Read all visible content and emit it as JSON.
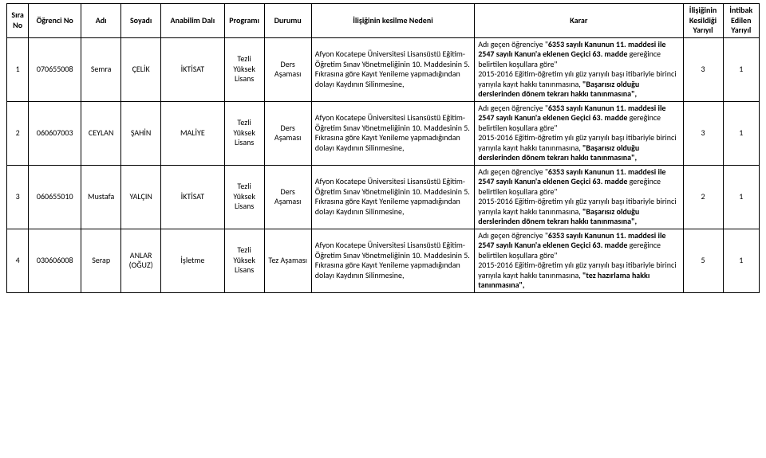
{
  "table": {
    "headers": {
      "sira": "Sıra No",
      "ogrenci": "Öğrenci No",
      "adi": "Adı",
      "soyadi": "Soyadı",
      "anabilim": "Anabilim Dalı",
      "program": "Programı",
      "durum": "Durumu",
      "neden": "İlişiğinin kesilme Nedeni",
      "karar": "Karar",
      "iliskigi": "İlişiğinin Kesildiği Yarıyıl",
      "intibak": "İntibak Edilen Yarıyıl"
    },
    "program_text": "Tezli Yüksek Lisans",
    "neden_text": "Afyon Kocatepe Üniversitesi Lisansüstü Eğitim-Öğretim Sınav Yönetmeliğinin 10. Maddesinin 5. Fıkrasına göre Kayıt Yenileme yapmadığından dolayı Kaydının Silinmesine,",
    "karar_prefix": "Adı geçen öğrenciye \"",
    "karar_bold1": "6353 sayılı Kanunun 11. maddesi ile 2547 sayılı Kanun'a eklenen Geçici 63. madde ",
    "karar_mid": "gereğince belirtilen koşullara göre\"",
    "karar_common": " 2015-2016 Eğitim-öğretim yılı güz yarıyılı başı itibariyle birinci yarıyıla kayıt hakkı tanınmasına, ",
    "karar_tail_ders": "\"Başarısız olduğu derslerinden dönem tekrarı hakkı tanınmasına\",",
    "karar_tail_tez": "\"tez hazırlama hakkı tanınmasına\",",
    "rows": [
      {
        "sira": "1",
        "ogr": "070655008",
        "adi": "Semra",
        "soy": "ÇELİK",
        "ana": "İKTİSAT",
        "durum": "Ders Aşaması",
        "ilk": "3",
        "int": "1",
        "tail": "ders"
      },
      {
        "sira": "2",
        "ogr": "060607003",
        "adi": "CEYLAN",
        "soy": "ŞAHİN",
        "ana": "MALİYE",
        "durum": "Ders Aşaması",
        "ilk": "3",
        "int": "1",
        "tail": "ders"
      },
      {
        "sira": "3",
        "ogr": "060655010",
        "adi": "Mustafa",
        "soy": "YALÇIN",
        "ana": "İKTİSAT",
        "durum": "Ders Aşaması",
        "ilk": "2",
        "int": "1",
        "tail": "ders"
      },
      {
        "sira": "4",
        "ogr": "030606008",
        "adi": "Serap",
        "soy": "ANLAR (OĞUZ)",
        "ana": "İşletme",
        "durum": "Tez Aşaması",
        "ilk": "5",
        "int": "1",
        "tail": "tez"
      }
    ]
  },
  "style": {
    "border_color": "#000000",
    "background": "#ffffff",
    "font_size_pt": 7.5,
    "header_font_weight": 700
  }
}
